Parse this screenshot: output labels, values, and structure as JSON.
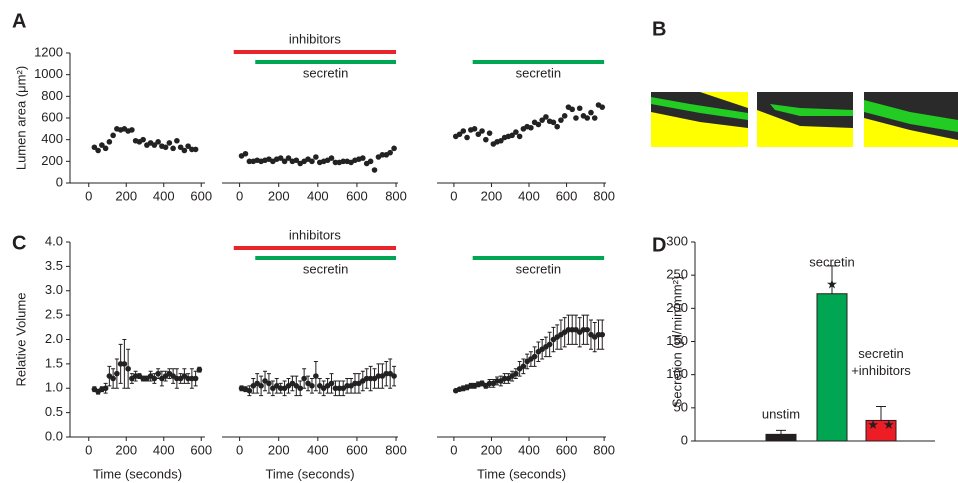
{
  "panel_labels": [
    "A",
    "B",
    "C",
    "D"
  ],
  "chart_data": [
    {
      "type": "scatter",
      "color": "#222222",
      "ylabel": "Lumen area (μm²)",
      "x": [
        30,
        50,
        70,
        90,
        110,
        130,
        150,
        170,
        190,
        210,
        230,
        250,
        270,
        290,
        310,
        330,
        350,
        370,
        390,
        410,
        430,
        450,
        470,
        490,
        510,
        530,
        550,
        570
      ],
      "values": [
        330,
        300,
        350,
        320,
        380,
        440,
        500,
        490,
        500,
        480,
        490,
        390,
        380,
        400,
        350,
        370,
        350,
        380,
        340,
        330,
        370,
        320,
        390,
        330,
        300,
        340,
        310,
        310
      ],
      "xlim": [
        -100,
        620
      ],
      "xticks": [
        0,
        200,
        400,
        600
      ],
      "ylim": [
        0,
        1200
      ],
      "yticks": [
        0,
        200,
        400,
        600,
        800,
        1000,
        1200
      ]
    },
    {
      "type": "scatter",
      "color": "#222222",
      "x": [
        10,
        30,
        50,
        70,
        90,
        110,
        130,
        150,
        170,
        190,
        210,
        230,
        250,
        270,
        290,
        310,
        330,
        350,
        370,
        390,
        410,
        430,
        450,
        470,
        490,
        510,
        530,
        550,
        570,
        590,
        610,
        630,
        650,
        670,
        690,
        710,
        730,
        750,
        770,
        790
      ],
      "values": [
        250,
        270,
        200,
        200,
        210,
        200,
        210,
        220,
        200,
        220,
        230,
        200,
        230,
        200,
        210,
        180,
        200,
        220,
        200,
        240,
        190,
        200,
        210,
        230,
        190,
        190,
        200,
        200,
        190,
        210,
        220,
        230,
        180,
        200,
        120,
        240,
        260,
        260,
        280,
        320
      ],
      "xlim": [
        -90,
        810
      ],
      "xticks": [
        0,
        200,
        400,
        600,
        800
      ],
      "ylim": [
        0,
        1200
      ],
      "annotations": [
        {
          "label": "inhibitors",
          "color": "#e8252a",
          "range": [
            -30,
            800
          ]
        },
        {
          "label": "secretin",
          "color": "#00a651",
          "range": [
            80,
            800
          ]
        }
      ]
    },
    {
      "type": "scatter",
      "color": "#222222",
      "x": [
        10,
        30,
        50,
        70,
        90,
        110,
        130,
        150,
        170,
        190,
        210,
        230,
        250,
        270,
        290,
        310,
        330,
        350,
        370,
        390,
        410,
        430,
        450,
        470,
        490,
        510,
        530,
        550,
        570,
        590,
        610,
        630,
        650,
        670,
        690,
        710,
        730,
        750,
        770,
        790
      ],
      "values": [
        430,
        450,
        480,
        420,
        490,
        500,
        450,
        480,
        400,
        460,
        360,
        380,
        390,
        420,
        430,
        440,
        470,
        430,
        500,
        520,
        510,
        560,
        540,
        580,
        610,
        570,
        560,
        520,
        580,
        620,
        700,
        680,
        600,
        690,
        620,
        600,
        650,
        600,
        720,
        700
      ],
      "xlim": [
        -90,
        810
      ],
      "xticks": [
        0,
        200,
        400,
        600,
        800
      ],
      "ylim": [
        0,
        1200
      ],
      "annotations": [
        {
          "label": "secretin",
          "color": "#00a651",
          "range": [
            100,
            800
          ]
        }
      ]
    },
    {
      "type": "scatter",
      "color": "#222222",
      "ylabel": "Relative Volume",
      "xlabel": "Time (seconds)",
      "x": [
        30,
        50,
        70,
        90,
        110,
        130,
        150,
        170,
        190,
        210,
        230,
        250,
        270,
        290,
        310,
        330,
        350,
        370,
        390,
        410,
        430,
        450,
        470,
        490,
        510,
        530,
        550,
        570,
        590
      ],
      "values": [
        0.98,
        0.93,
        0.98,
        1.0,
        1.25,
        1.2,
        1.3,
        1.5,
        1.5,
        1.4,
        1.2,
        1.25,
        1.25,
        1.2,
        1.2,
        1.25,
        1.2,
        1.3,
        1.2,
        1.25,
        1.3,
        1.25,
        1.2,
        1.2,
        1.25,
        1.2,
        1.2,
        1.2,
        1.38
      ],
      "errors": [
        0.05,
        0.05,
        0.05,
        0.1,
        0.2,
        0.2,
        0.3,
        0.4,
        0.5,
        0.4,
        0.1,
        0.1,
        0.05,
        0.05,
        0.05,
        0.1,
        0.1,
        0.1,
        0.15,
        0.1,
        0.1,
        0.15,
        0.2,
        0.1,
        0.15,
        0.1,
        0.2,
        0.15,
        0.05
      ],
      "xlim": [
        -100,
        620
      ],
      "xticks": [
        0,
        200,
        400,
        600
      ],
      "ylim": [
        0,
        4
      ],
      "yticks": [
        {
          "value": 0,
          "label": "0.0"
        },
        0.5,
        {
          "value": 1,
          "label": "1.0"
        },
        1.5,
        {
          "value": 2,
          "label": "2.0"
        },
        2.5,
        {
          "value": 3,
          "label": "3.0"
        },
        3.5,
        {
          "value": 4,
          "label": "4.0"
        }
      ]
    },
    {
      "type": "scatter",
      "color": "#222222",
      "xlabel": "Time (seconds)",
      "x": [
        10,
        30,
        50,
        70,
        90,
        110,
        130,
        150,
        170,
        190,
        210,
        230,
        250,
        270,
        290,
        310,
        330,
        350,
        370,
        390,
        410,
        430,
        450,
        470,
        490,
        510,
        530,
        550,
        570,
        590,
        610,
        630,
        650,
        670,
        690,
        710,
        730,
        750,
        770,
        790
      ],
      "values": [
        1.0,
        0.98,
        0.95,
        1.05,
        1.1,
        1.05,
        1.15,
        1.1,
        1.0,
        1.05,
        1.0,
        1.0,
        1.05,
        1.1,
        1.05,
        1.0,
        1.2,
        1.1,
        1.05,
        1.25,
        1.05,
        1.0,
        1.05,
        1.1,
        1.0,
        1.0,
        1.0,
        1.05,
        1.05,
        1.1,
        1.1,
        1.15,
        1.2,
        1.2,
        1.2,
        1.25,
        1.25,
        1.3,
        1.3,
        1.25
      ],
      "errors": [
        0.05,
        0.05,
        0.1,
        0.15,
        0.2,
        0.2,
        0.2,
        0.2,
        0.15,
        0.15,
        0.1,
        0.15,
        0.15,
        0.15,
        0.2,
        0.15,
        0.2,
        0.15,
        0.15,
        0.3,
        0.15,
        0.15,
        0.15,
        0.2,
        0.15,
        0.15,
        0.15,
        0.15,
        0.15,
        0.2,
        0.2,
        0.2,
        0.2,
        0.25,
        0.2,
        0.25,
        0.25,
        0.25,
        0.3,
        0.2
      ],
      "xlim": [
        -90,
        810
      ],
      "xticks": [
        0,
        200,
        400,
        600,
        800
      ],
      "ylim": [
        0,
        4
      ],
      "annotations": [
        {
          "label": "inhibitors",
          "color": "#e8252a",
          "range": [
            -30,
            800
          ]
        },
        {
          "label": "secretin",
          "color": "#00a651",
          "range": [
            80,
            800
          ]
        }
      ]
    },
    {
      "type": "scatter",
      "color": "#222222",
      "xlabel": "Time (seconds)",
      "x": [
        10,
        30,
        50,
        70,
        90,
        110,
        130,
        150,
        170,
        190,
        210,
        230,
        250,
        270,
        290,
        310,
        330,
        350,
        370,
        390,
        410,
        430,
        450,
        470,
        490,
        510,
        530,
        550,
        570,
        590,
        610,
        630,
        650,
        670,
        690,
        710,
        730,
        750,
        770,
        790
      ],
      "values": [
        0.95,
        0.98,
        1.0,
        1.02,
        1.05,
        1.05,
        1.08,
        1.1,
        1.05,
        1.1,
        1.1,
        1.15,
        1.15,
        1.2,
        1.2,
        1.25,
        1.3,
        1.4,
        1.45,
        1.55,
        1.6,
        1.65,
        1.75,
        1.8,
        1.85,
        1.9,
        2.0,
        2.05,
        2.1,
        2.15,
        2.2,
        2.2,
        2.2,
        2.15,
        2.2,
        2.2,
        2.1,
        2.05,
        2.1,
        2.1
      ],
      "errors": [
        0.03,
        0.03,
        0.05,
        0.05,
        0.05,
        0.05,
        0.05,
        0.05,
        0.05,
        0.08,
        0.08,
        0.08,
        0.1,
        0.1,
        0.1,
        0.1,
        0.1,
        0.15,
        0.15,
        0.15,
        0.15,
        0.2,
        0.2,
        0.2,
        0.2,
        0.25,
        0.25,
        0.25,
        0.3,
        0.3,
        0.3,
        0.3,
        0.3,
        0.3,
        0.3,
        0.3,
        0.3,
        0.3,
        0.3,
        0.3
      ],
      "xlim": [
        -90,
        810
      ],
      "xticks": [
        0,
        200,
        400,
        600,
        800
      ],
      "ylim": [
        0,
        4
      ],
      "annotations": [
        {
          "label": "secretin",
          "color": "#00a651",
          "range": [
            100,
            800
          ]
        }
      ]
    },
    {
      "type": "bar",
      "ylabel": "Secretion (pl/min/mm²)",
      "categories": [
        "unstim",
        "secretin",
        "secretin +inhibitors"
      ],
      "values": [
        10,
        222,
        31
      ],
      "errors": [
        6,
        42,
        21
      ],
      "colors": [
        "#231f20",
        "#00a651",
        "#ee1c25"
      ],
      "significance": [
        null,
        "★",
        "★ ★"
      ],
      "ylim": [
        0,
        300
      ],
      "yticks": [
        0,
        50,
        100,
        150,
        200,
        250,
        300
      ]
    }
  ]
}
